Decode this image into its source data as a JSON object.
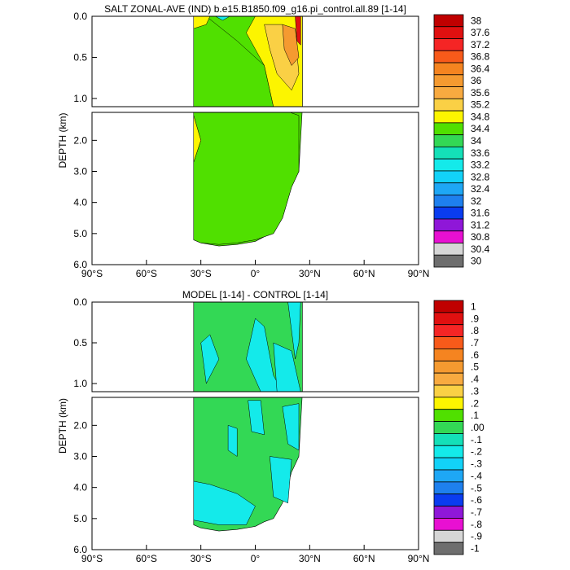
{
  "chart_data": [
    {
      "type": "heatmap",
      "title": "SALT ZONAL-AVE (IND) b.e15.B1850.f09_g16.pi_control.all.89 [1-14]",
      "xlabel": "",
      "ylabel": "DEPTH (km)",
      "x_ticks": [
        "90°S",
        "60°S",
        "30°S",
        "0°",
        "30°N",
        "60°N",
        "90°N"
      ],
      "y_ticks_upper": [
        "0.0",
        "0.5",
        "1.0"
      ],
      "y_ticks_lower": [
        "2.0",
        "3.0",
        "4.0",
        "5.0",
        "6.0"
      ],
      "xlim": [
        -90,
        90
      ],
      "ylim_upper_km": [
        0,
        1.1
      ],
      "ylim_lower_km": [
        1.1,
        6.0
      ],
      "colorbar": {
        "labels": [
          "38",
          "37.6",
          "37.2",
          "36.8",
          "36.4",
          "36",
          "35.6",
          "35.2",
          "34.8",
          "34.4",
          "34",
          "33.6",
          "33.2",
          "32.8",
          "32.4",
          "32",
          "31.6",
          "31.2",
          "30.8",
          "30.4",
          "30"
        ],
        "colors": [
          "#c00000",
          "#e01010",
          "#f52525",
          "#f85a1a",
          "#f58420",
          "#f59a30",
          "#f8aa40",
          "#fad045",
          "#fcf500",
          "#50e000",
          "#33d855",
          "#14e0b8",
          "#14eaea",
          "#12d2f8",
          "#1ea7f5",
          "#1e80ee",
          "#0a3cf0",
          "#8f17d8",
          "#e810d2",
          "#d6d6d6",
          "#6e6e6e"
        ]
      },
      "regions": [
        {
          "label": "34.4-34.8",
          "polygon": [
            [
              -34,
              0
            ],
            [
              -27,
              0
            ],
            [
              -10,
              0.3
            ],
            [
              5,
              0.6
            ],
            [
              10,
              1.1
            ],
            [
              24,
              1.2
            ],
            [
              24,
              3.0
            ],
            [
              20,
              3.5
            ],
            [
              15,
              4.5
            ],
            [
              10,
              5.0
            ],
            [
              5,
              5.1
            ],
            [
              0,
              5.2
            ],
            [
              -5,
              5.25
            ],
            [
              -10,
              5.3
            ],
            [
              -20,
              5.35
            ],
            [
              -30,
              5.3
            ],
            [
              -34,
              5.2
            ],
            [
              -34,
              2.7
            ],
            [
              -30,
              2.0
            ],
            [
              -34,
              1.2
            ]
          ]
        },
        {
          "label": "34.8-35.2",
          "polygon": [
            [
              0,
              0
            ],
            [
              10,
              0
            ],
            [
              20,
              0
            ],
            [
              26,
              0
            ],
            [
              26,
              1.1
            ],
            [
              10,
              1.1
            ],
            [
              5,
              0.6
            ],
            [
              -5,
              0.2
            ]
          ]
        },
        {
          "label": "34.8-35.2",
          "polygon": [
            [
              -34,
              2.7
            ],
            [
              -30,
              2.0
            ],
            [
              -34,
              1.2
            ]
          ]
        },
        {
          "label": "35.2-35.6",
          "polygon": [
            [
              5,
              0.1
            ],
            [
              15,
              0.1
            ],
            [
              22,
              0.2
            ],
            [
              24,
              0.7
            ],
            [
              20,
              0.9
            ],
            [
              12,
              0.7
            ],
            [
              8,
              0.4
            ]
          ]
        },
        {
          "label": "35.6-36.0",
          "polygon": [
            [
              15,
              0.1
            ],
            [
              22,
              0.15
            ],
            [
              24,
              0.5
            ],
            [
              20,
              0.6
            ],
            [
              16,
              0.4
            ]
          ]
        },
        {
          "label": "36.8-37.6",
          "polygon": [
            [
              22,
              0
            ],
            [
              25,
              0
            ],
            [
              25,
              0.35
            ],
            [
              23,
              0.3
            ]
          ]
        },
        {
          "label": "34.8-35.2",
          "polygon": [
            [
              -34,
              0
            ],
            [
              -25,
              0
            ],
            [
              -27,
              0.1
            ],
            [
              -34,
              0.15
            ]
          ]
        },
        {
          "label": "33.6-34.0",
          "polygon": [
            [
              -22,
              0
            ],
            [
              -14,
              0
            ],
            [
              -18,
              0.05
            ]
          ]
        }
      ]
    },
    {
      "type": "heatmap",
      "title": "MODEL [1-14] - CONTROL [1-14]",
      "xlabel": "",
      "ylabel": "DEPTH (km)",
      "x_ticks": [
        "90°S",
        "60°S",
        "30°S",
        "0°",
        "30°N",
        "60°N",
        "90°N"
      ],
      "y_ticks_upper": [
        "0.0",
        "0.5",
        "1.0"
      ],
      "y_ticks_lower": [
        "2.0",
        "3.0",
        "4.0",
        "5.0",
        "6.0"
      ],
      "xlim": [
        -90,
        90
      ],
      "ylim_upper_km": [
        0,
        1.1
      ],
      "ylim_lower_km": [
        1.1,
        6.0
      ],
      "colorbar": {
        "labels": [
          "1",
          ".9",
          ".8",
          ".7",
          ".6",
          ".5",
          ".4",
          ".3",
          ".2",
          ".1",
          ".00",
          "-.1",
          "-.2",
          "-.3",
          "-.4",
          "-.5",
          "-.6",
          "-.7",
          "-.8",
          "-.9",
          "-1"
        ],
        "colors": [
          "#c00000",
          "#e01010",
          "#f52525",
          "#f85a1a",
          "#f58420",
          "#f59a30",
          "#f8aa40",
          "#fad045",
          "#fcf500",
          "#50e000",
          "#33d855",
          "#14e0b8",
          "#14eaea",
          "#12d2f8",
          "#1ea7f5",
          "#1e80ee",
          "#0a3cf0",
          "#8f17d8",
          "#e810d2",
          "#d6d6d6",
          "#6e6e6e"
        ]
      },
      "regions": [
        {
          "label": "-0.1-0.0",
          "polygon": [
            [
              -30,
              0.5
            ],
            [
              -25,
              0.4
            ],
            [
              -20,
              0.7
            ],
            [
              -27,
              1.0
            ]
          ]
        },
        {
          "label": "-0.1-0.0",
          "polygon": [
            [
              0,
              0.2
            ],
            [
              5,
              0.3
            ],
            [
              10,
              0.9
            ],
            [
              15,
              1.1
            ],
            [
              3,
              1.1
            ],
            [
              -5,
              0.7
            ]
          ]
        },
        {
          "label": "-0.1-0.0",
          "polygon": [
            [
              18,
              0.0
            ],
            [
              25,
              0.0
            ],
            [
              24,
              0.5
            ],
            [
              22,
              0.7
            ]
          ]
        },
        {
          "label": "-0.1-0.0",
          "polygon": [
            [
              10,
              0.5
            ],
            [
              20,
              0.6
            ],
            [
              25,
              1.1
            ],
            [
              12,
              1.1
            ]
          ]
        },
        {
          "label": "-0.1-0.0",
          "polygon": [
            [
              -34,
              3.8
            ],
            [
              -25,
              3.9
            ],
            [
              -10,
              4.2
            ],
            [
              0,
              4.6
            ],
            [
              -5,
              5.2
            ],
            [
              -20,
              5.2
            ],
            [
              -34,
              5.05
            ]
          ]
        },
        {
          "label": "-0.1-0.0",
          "polygon": [
            [
              -4,
              1.2
            ],
            [
              3,
              1.2
            ],
            [
              5,
              2.3
            ],
            [
              -2,
              2.2
            ]
          ]
        },
        {
          "label": "-0.1-0.0",
          "polygon": [
            [
              15,
              1.4
            ],
            [
              24,
              1.3
            ],
            [
              24,
              2.8
            ],
            [
              18,
              2.6
            ]
          ]
        },
        {
          "label": "-0.1-0.0",
          "polygon": [
            [
              -15,
              2.0
            ],
            [
              -10,
              2.1
            ],
            [
              -10,
              3.0
            ],
            [
              -15,
              2.8
            ]
          ]
        },
        {
          "label": "-0.1-0.0",
          "polygon": [
            [
              8,
              3.0
            ],
            [
              20,
              3.1
            ],
            [
              18,
              4.5
            ],
            [
              10,
              4.3
            ]
          ]
        }
      ]
    }
  ]
}
